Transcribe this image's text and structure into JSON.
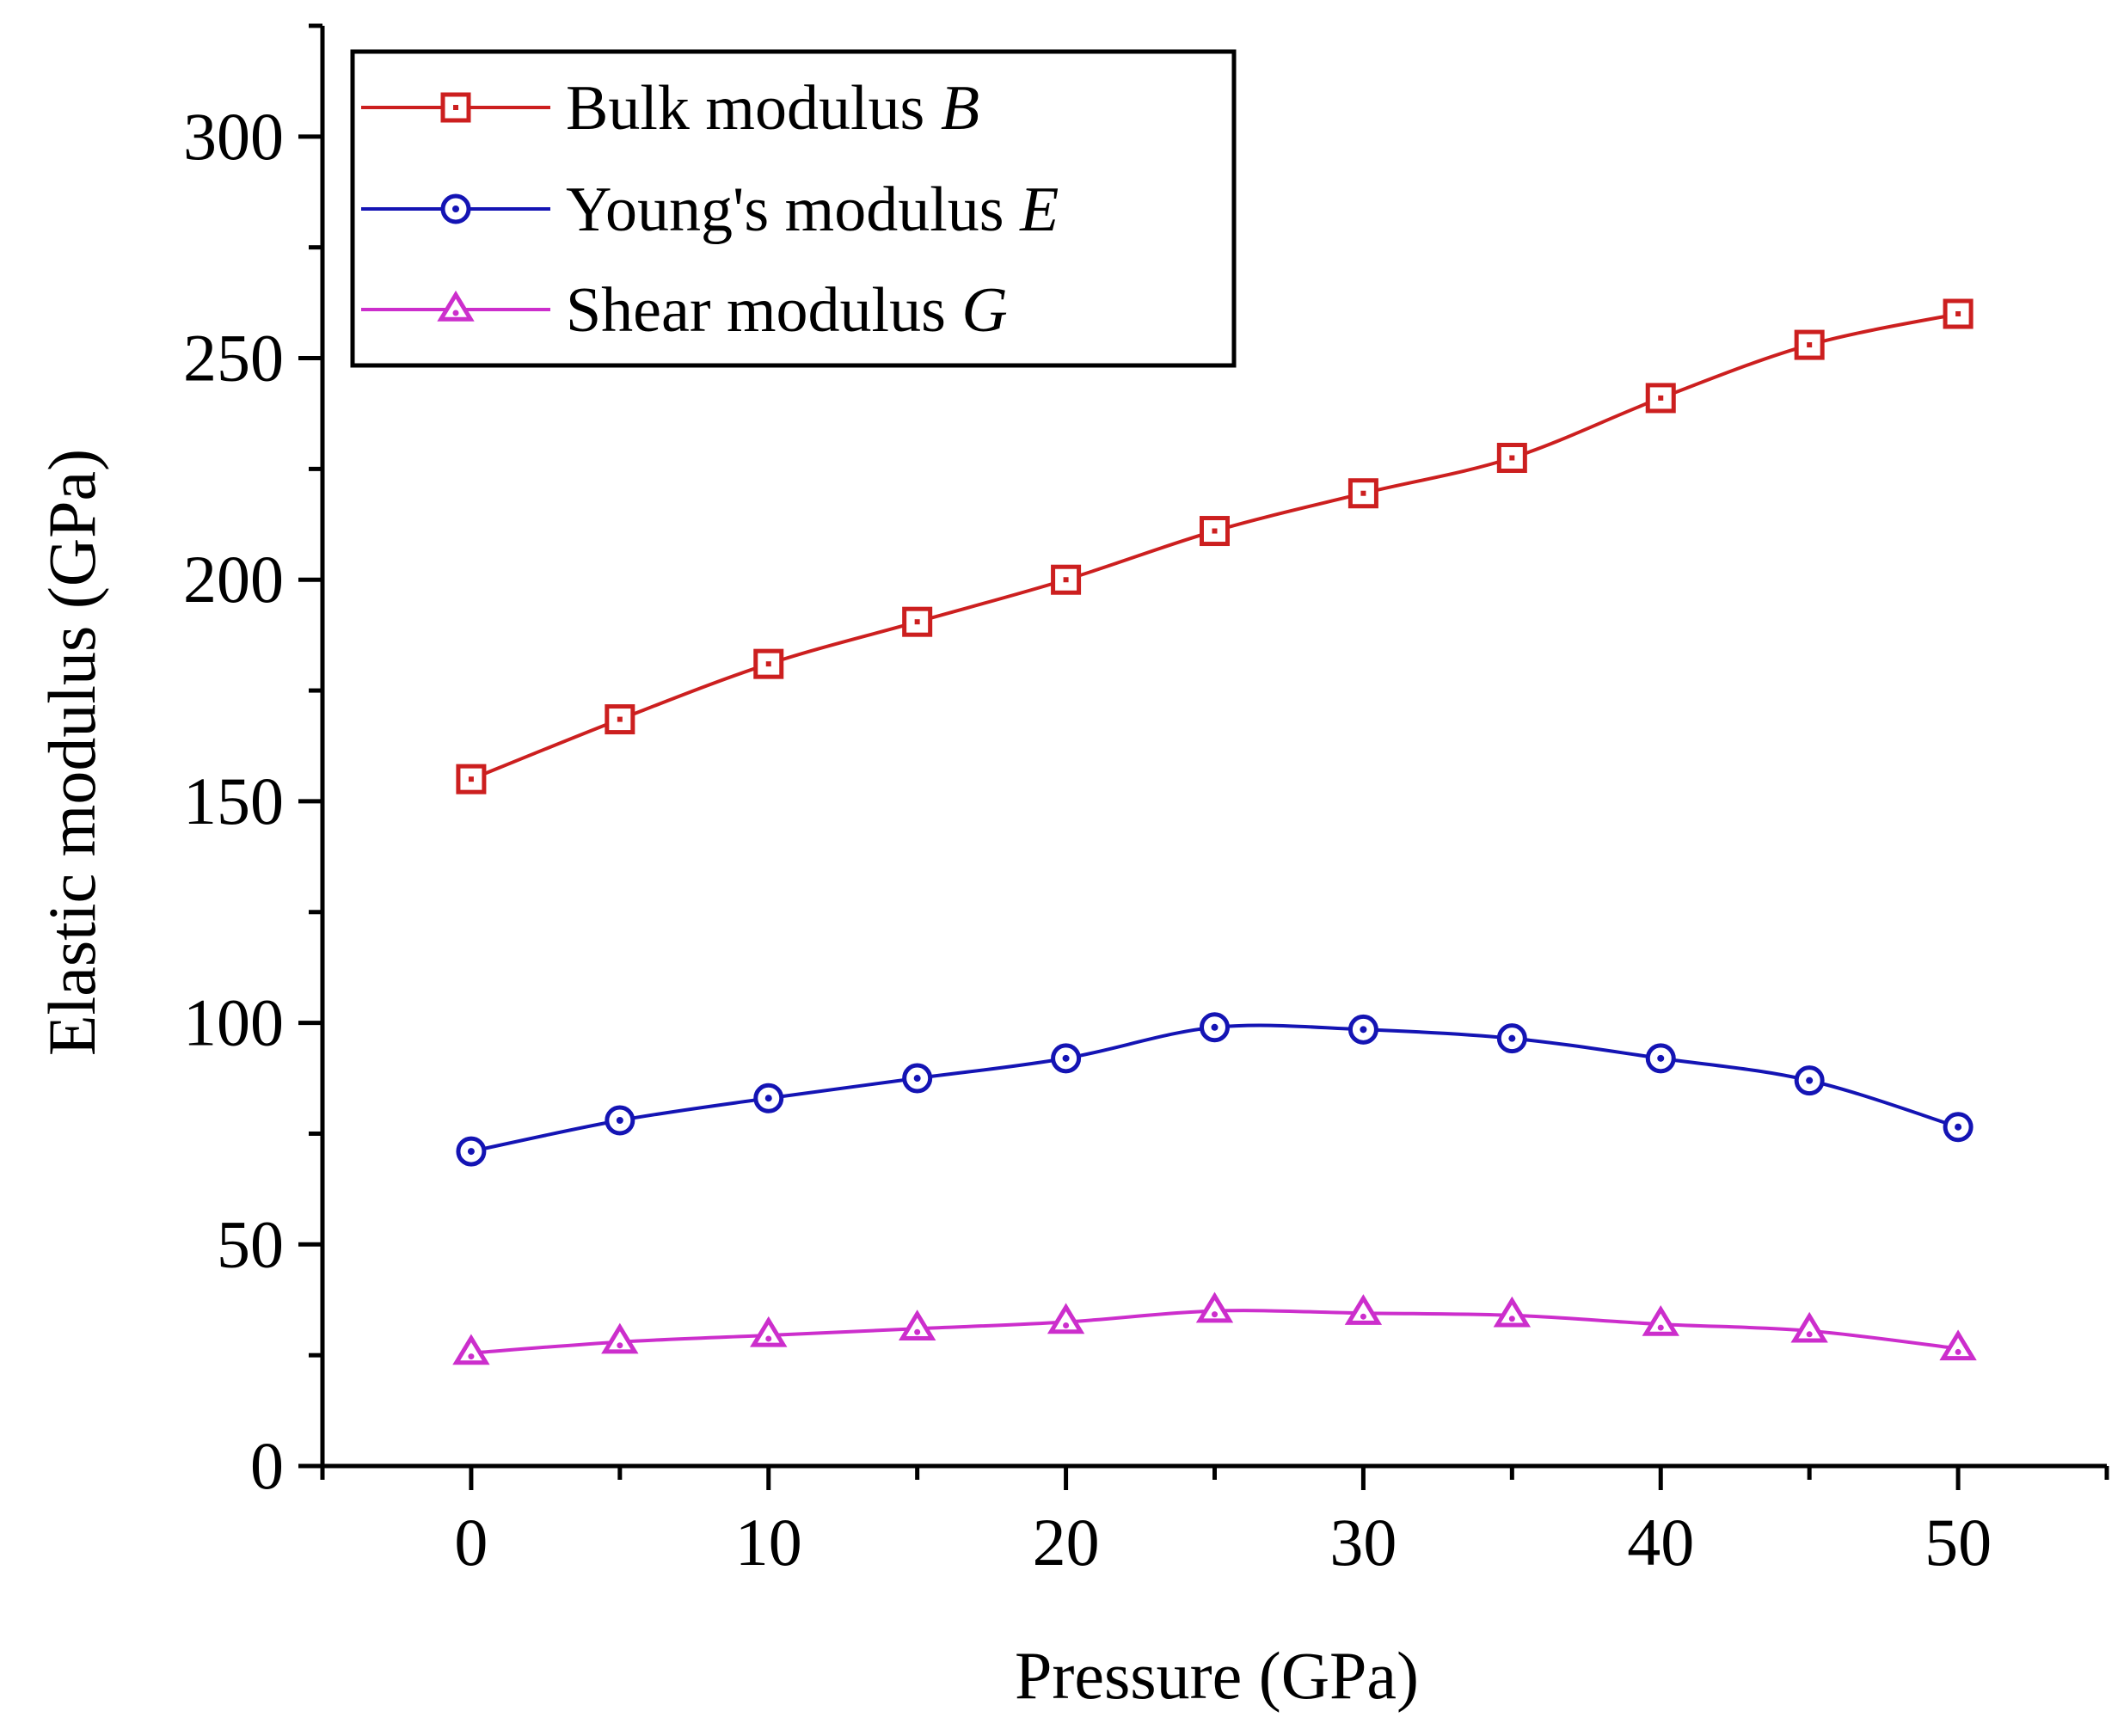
{
  "chart_data": {
    "type": "line",
    "title": "",
    "xlabel": "Pressure (GPa)",
    "ylabel": "Elastic modulus (GPa)",
    "xlim": [
      -5,
      55
    ],
    "ylim": [
      0,
      325
    ],
    "xticks": [
      0,
      10,
      20,
      30,
      40,
      50
    ],
    "yticks": [
      0,
      50,
      100,
      150,
      200,
      250,
      300
    ],
    "x": [
      0,
      5,
      10,
      15,
      20,
      25,
      30,
      35,
      40,
      45,
      50
    ],
    "grid": false,
    "legend_position": "top-left",
    "series": [
      {
        "name_text": "Bulk modulus ",
        "name_symbol": "B",
        "color": "#cc1f1f",
        "marker": "square",
        "values": [
          155,
          168.5,
          181,
          190.5,
          200,
          211,
          219.5,
          227.5,
          241,
          253,
          260
        ]
      },
      {
        "name_text": "Young's modulus ",
        "name_symbol": "E",
        "color": "#1414b4",
        "marker": "circle",
        "values": [
          71,
          78,
          83,
          87.5,
          92,
          99,
          98.5,
          96.5,
          92,
          87,
          76.5
        ]
      },
      {
        "name_text": "Shear modulus ",
        "name_symbol": "G",
        "color": "#cc2ecc",
        "marker": "triangle",
        "values": [
          25.5,
          28,
          29.5,
          31,
          32.5,
          35,
          34.5,
          34,
          32,
          30.5,
          26.5
        ]
      }
    ]
  }
}
